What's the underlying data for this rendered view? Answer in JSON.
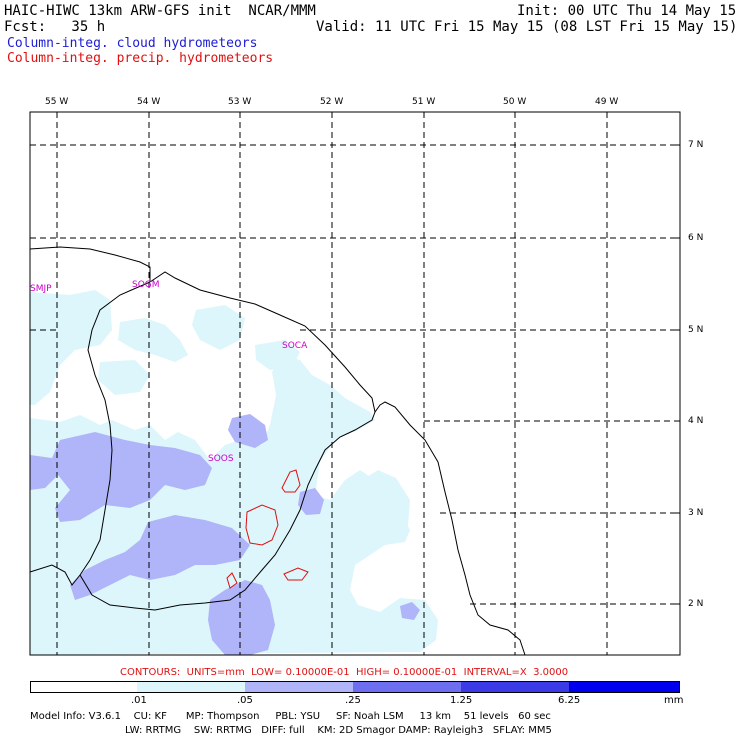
{
  "header": {
    "line1_left": "HAIC-HIWC 13km ARW-GFS init  NCAR/MMM",
    "line1_right": "Init: 00 UTC Thu 14 May 15",
    "line2_left": "Fcst:   35 h",
    "line2_right": "Valid: 11 UTC Fri 15 May 15 (08 LST Fri 15 May 15)"
  },
  "legend": {
    "cloud": "Column-integ. cloud hydrometeors",
    "precip": "Column-integ. precip. hydrometeors",
    "cloud_color": "#1c1cd6",
    "precip_color": "#e01010"
  },
  "axes": {
    "longitudes": [
      "55 W",
      "54 W",
      "53 W",
      "52 W",
      "51 W",
      "50 W",
      "49 W"
    ],
    "latitudes": [
      "7 N",
      "6 N",
      "5 N",
      "4 N",
      "3 N",
      "2 N"
    ]
  },
  "stations": [
    "SMJP",
    "SOGM",
    "SOCA",
    "SOOS"
  ],
  "contours_line": "CONTOURS:  UNITS=mm  LOW= 0.10000E-01  HIGH= 0.10000E-01  INTERVAL=X  3.0000",
  "colorbar": {
    "labels": [
      ".01",
      ".05",
      ".25",
      "1.25",
      "6.25"
    ],
    "units": "mm",
    "colors": [
      "#ffffff",
      "#ddf6fb",
      "#b0b4f8",
      "#6e6ef0",
      "#3a3ae6",
      "#0000ee"
    ]
  },
  "model_info": {
    "line1": "Model Info: V3.6.1    CU: KF      MP: Thompson     PBL: YSU     SF: Noah LSM     13 km    51 levels   60 sec",
    "line2": "LW: RRTMG    SW: RRTMG   DIFF: full    KM: 2D Smagor DAMP: Rayleigh3   SFLAY: MM5"
  }
}
